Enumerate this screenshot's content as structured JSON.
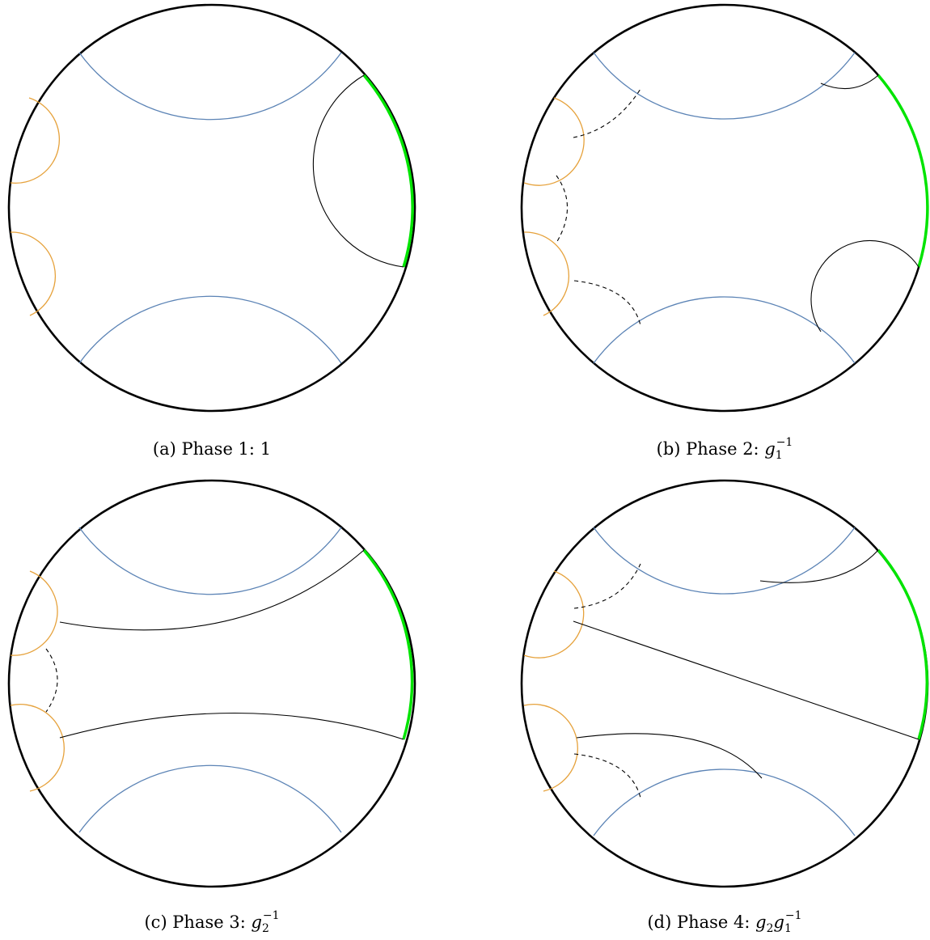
{
  "colors": {
    "boundary": "#000000",
    "green_arc": "#00e400",
    "blue_geodesic": "#5b83b5",
    "orange_geodesic": "#e6a23c",
    "black_geodesic": "#000000"
  },
  "panels": [
    {
      "id": "a",
      "label": "(a) Phase 1:",
      "element": "1"
    },
    {
      "id": "b",
      "label": "(b) Phase 2:",
      "element_base": "g",
      "element_sub": "1",
      "element_sup": "−1"
    },
    {
      "id": "c",
      "label": "(c) Phase 3:",
      "element_base": "g",
      "element_sub": "2",
      "element_sup": "−1"
    },
    {
      "id": "d",
      "label": "(d) Phase 4:",
      "element_base1": "g",
      "element_sub1": "2",
      "element_base2": "g",
      "element_sub2": "1",
      "element_sup": "−1"
    }
  ]
}
